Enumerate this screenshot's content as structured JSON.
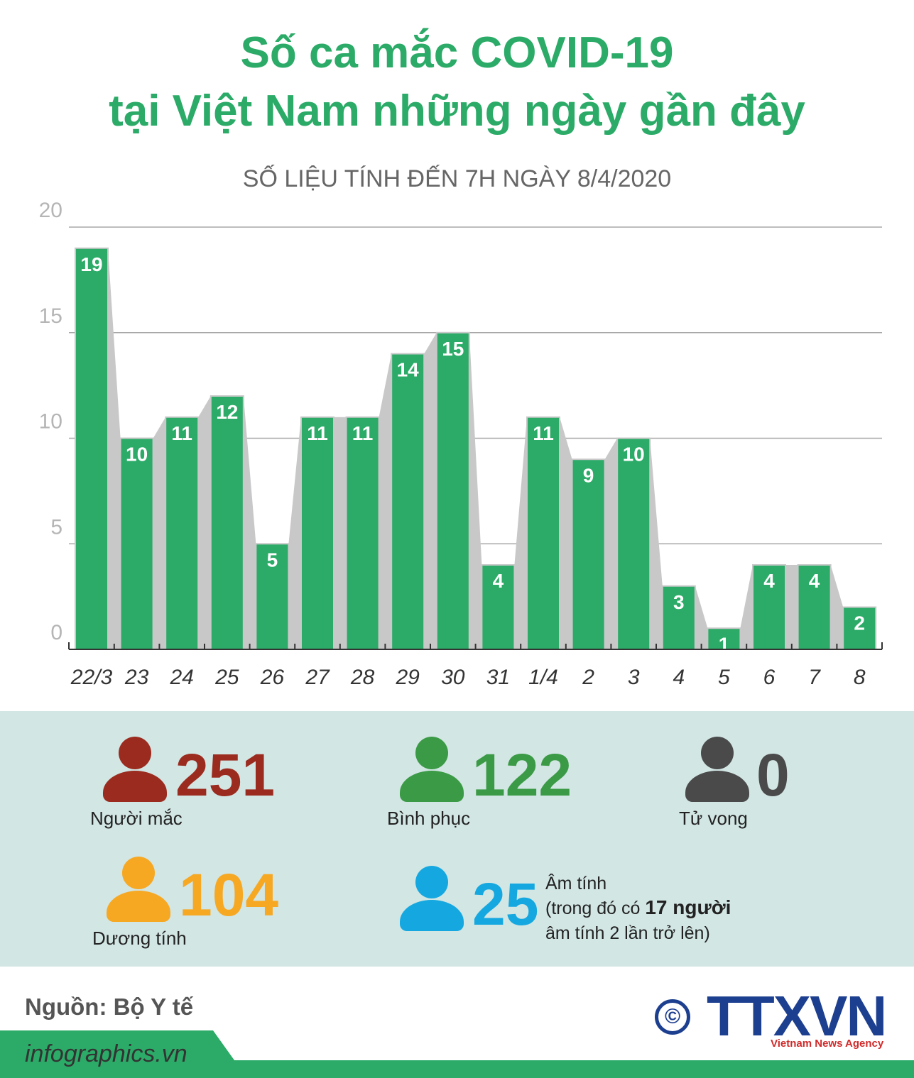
{
  "title_line1": "Số ca mắc COVID-19",
  "title_line2": "tại Việt Nam những ngày gần đây",
  "subtitle": "SỐ LIỆU TÍNH ĐẾN 7H NGÀY 8/4/2020",
  "colors": {
    "bar": "#2bab67",
    "bar_shadow": "#c8c8c8",
    "title": "#2bab67",
    "infected": "#9b2b1f",
    "recovered": "#3b9a45",
    "deaths": "#4a4a4a",
    "positive": "#f6a823",
    "negative": "#15a8e0",
    "panel": "#d2e6e4"
  },
  "chart_data": {
    "type": "bar",
    "categories": [
      "22/3",
      "23",
      "24",
      "25",
      "26",
      "27",
      "28",
      "29",
      "30",
      "31",
      "1/4",
      "2",
      "3",
      "4",
      "5",
      "6",
      "7",
      "8"
    ],
    "values": [
      19,
      10,
      11,
      12,
      5,
      11,
      11,
      14,
      15,
      4,
      11,
      9,
      10,
      3,
      1,
      4,
      4,
      2
    ],
    "ylim": [
      0,
      20
    ],
    "yticks": [
      0,
      5,
      10,
      15,
      20
    ],
    "grid": true,
    "title": "",
    "xlabel": "",
    "ylabel": ""
  },
  "stats": {
    "infected": {
      "value": "251",
      "label": "Người mắc",
      "icon": "person-icon"
    },
    "recovered": {
      "value": "122",
      "label": "Bình phục",
      "icon": "person-icon"
    },
    "deaths": {
      "value": "0",
      "label": "Tử vong",
      "icon": "person-icon"
    },
    "positive": {
      "value": "104",
      "label": "Dương tính",
      "icon": "person-icon"
    },
    "negative": {
      "value": "25",
      "label": "Âm tính",
      "note_prefix": "(trong đó có ",
      "note_bold": "17 người",
      "note_line3": "âm tính 2 lần trở lên)",
      "icon": "person-icon"
    }
  },
  "source": "Nguồn: Bộ Y tế",
  "website": "infographics.vn",
  "copyright_symbol": "©",
  "logo": "TTXVN",
  "logo_sub": "Vietnam News Agency"
}
